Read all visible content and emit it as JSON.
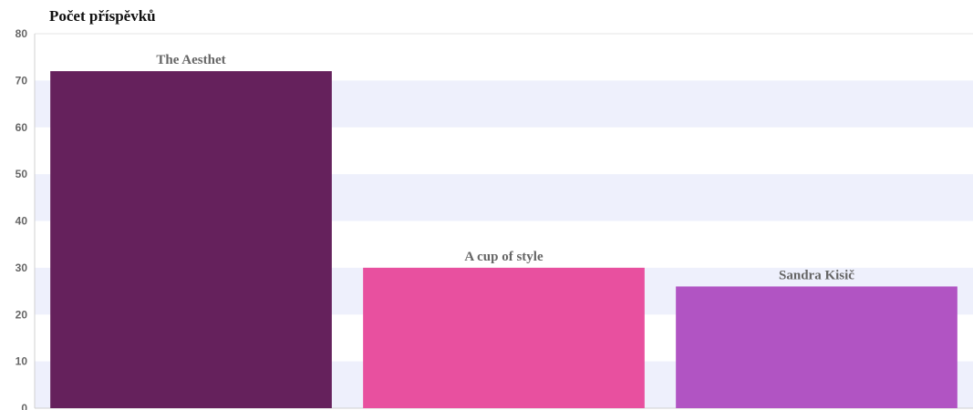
{
  "chart_data": {
    "type": "bar",
    "title": "Počet příspěvků",
    "xlabel": "",
    "ylabel": "",
    "ylim": [
      0,
      80
    ],
    "yticks": [
      0,
      10,
      20,
      30,
      40,
      50,
      60,
      70,
      80
    ],
    "categories": [
      "The Aesthet",
      "A cup of style",
      "Sandra Kisič"
    ],
    "values": [
      72,
      30,
      26
    ],
    "colors": [
      "#65215c",
      "#e8509f",
      "#b154c3"
    ],
    "band_color": "#eef0fc",
    "grid": "alternating horizontal bands"
  }
}
